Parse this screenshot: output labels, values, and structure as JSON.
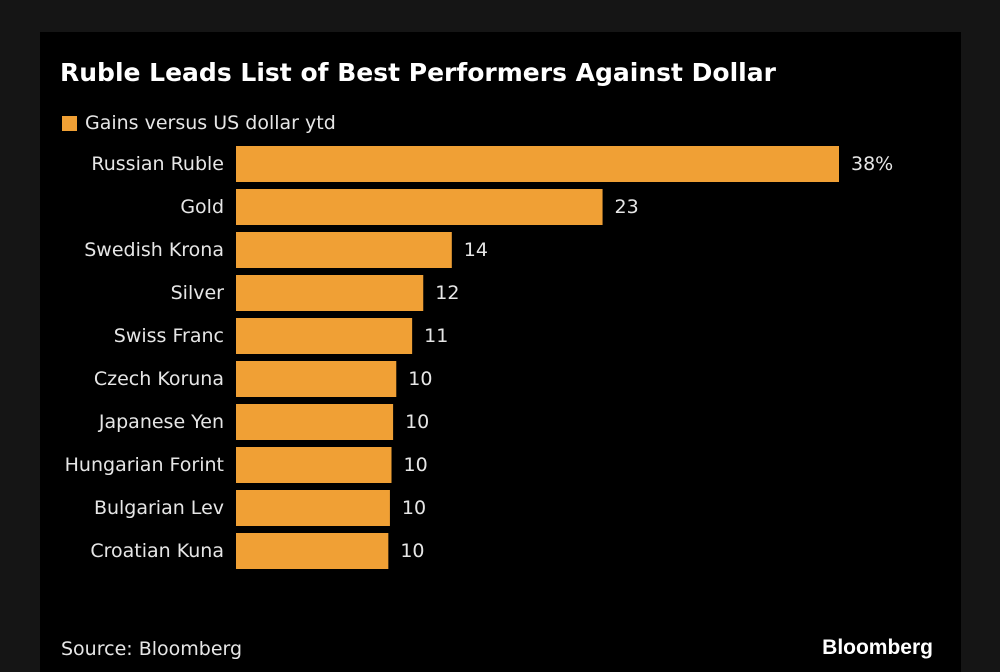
{
  "chart_data": {
    "type": "bar",
    "orientation": "horizontal",
    "title": "Ruble Leads List of Best Performers Against Dollar",
    "series": [
      {
        "name": "Gains versus US dollar ytd",
        "color": "#f0a035",
        "categories": [
          "Russian Ruble",
          "Gold",
          "Swedish Krona",
          "Silver",
          "Swiss Franc",
          "Czech Koruna",
          "Japanese Yen",
          "Hungarian Forint",
          "Bulgarian Lev",
          "Croatian Kuna"
        ],
        "values": [
          38,
          23.1,
          13.6,
          11.8,
          11.1,
          10.1,
          9.9,
          9.8,
          9.7,
          9.6
        ],
        "data_labels": [
          "38%",
          "23",
          "14",
          "12",
          "11",
          "10",
          "10",
          "10",
          "10",
          "10"
        ]
      }
    ],
    "xlim": [
      0,
      38
    ],
    "grid": false,
    "legend_position": "top-left"
  },
  "footer": {
    "source": "Source: Bloomberg",
    "brand": "Bloomberg"
  },
  "colors": {
    "background": "#000000",
    "page": "#151515",
    "bar": "#f0a035",
    "text": "#e6e6e6"
  }
}
